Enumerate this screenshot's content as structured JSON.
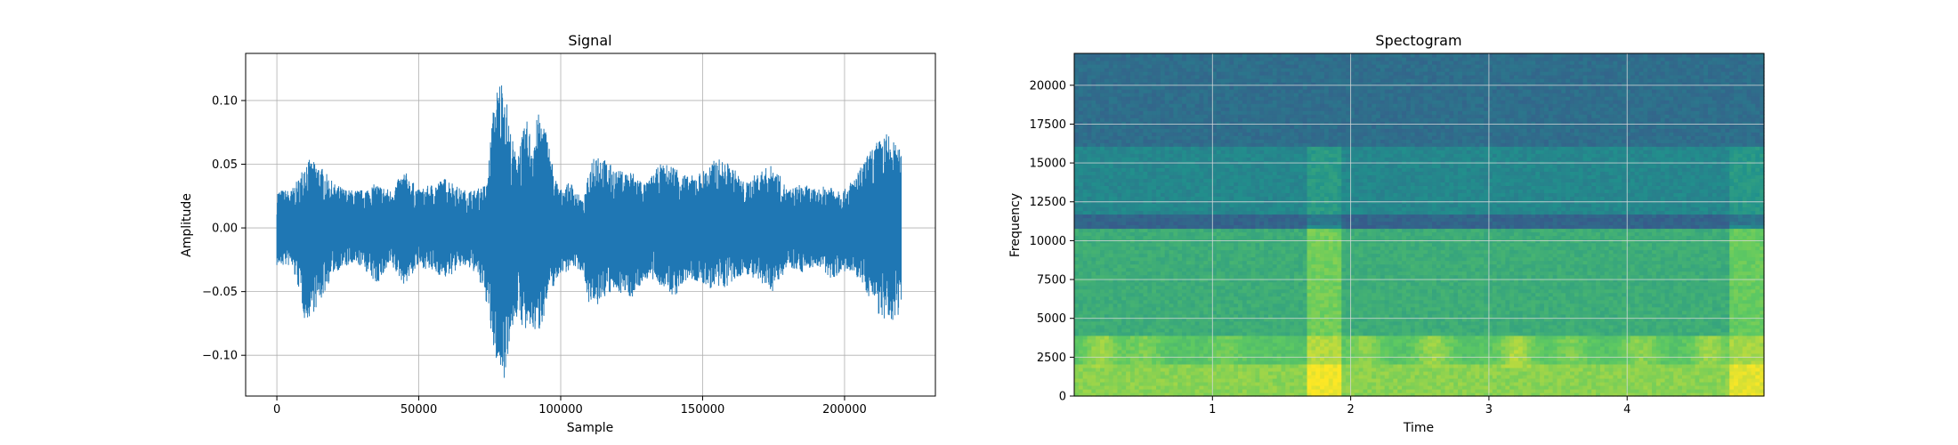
{
  "chart_data": [
    {
      "type": "line",
      "title": "Signal",
      "xlabel": "Sample",
      "ylabel": "Amplitude",
      "xlim": [
        -11000,
        232000
      ],
      "ylim": [
        -0.132,
        0.137
      ],
      "grid": true,
      "xticks": [
        0,
        50000,
        100000,
        150000,
        200000
      ],
      "xtick_labels": [
        "0",
        "50000",
        "100000",
        "150000",
        "200000"
      ],
      "yticks": [
        -0.1,
        -0.05,
        0.0,
        0.05,
        0.1
      ],
      "ytick_labels": [
        "−0.10",
        "−0.05",
        "0.00",
        "0.05",
        "0.10"
      ],
      "line_color": "#1f77b4",
      "series": [
        {
          "x": [
            0,
            5000,
            8000,
            10000,
            15000,
            20000,
            25000,
            30000,
            35000,
            40000,
            45000,
            50000,
            55000,
            60000,
            65000,
            70000,
            74000,
            76000,
            78000,
            80000,
            82000,
            84000,
            86000,
            88000,
            90000,
            92000,
            94000,
            96000,
            98000,
            100000,
            102000,
            104000,
            108000,
            110000,
            112000,
            115000,
            120000,
            125000,
            130000,
            135000,
            140000,
            145000,
            150000,
            155000,
            160000,
            165000,
            170000,
            175000,
            180000,
            185000,
            190000,
            195000,
            200000,
            205000,
            210000,
            215000,
            220000
          ],
          "upper": [
            0.03,
            0.03,
            0.04,
            0.055,
            0.05,
            0.035,
            0.03,
            0.03,
            0.035,
            0.03,
            0.045,
            0.03,
            0.035,
            0.04,
            0.03,
            0.03,
            0.035,
            0.09,
            0.115,
            0.12,
            0.08,
            0.06,
            0.07,
            0.085,
            0.07,
            0.09,
            0.085,
            0.065,
            0.04,
            0.03,
            0.035,
            0.035,
            0.02,
            0.045,
            0.065,
            0.055,
            0.045,
            0.045,
            0.035,
            0.05,
            0.05,
            0.04,
            0.045,
            0.055,
            0.05,
            0.035,
            0.045,
            0.05,
            0.03,
            0.035,
            0.03,
            0.035,
            0.03,
            0.045,
            0.065,
            0.075,
            0.06
          ],
          "lower": [
            -0.03,
            -0.03,
            -0.05,
            -0.075,
            -0.06,
            -0.035,
            -0.03,
            -0.03,
            -0.045,
            -0.03,
            -0.045,
            -0.03,
            -0.035,
            -0.04,
            -0.03,
            -0.035,
            -0.06,
            -0.095,
            -0.11,
            -0.12,
            -0.09,
            -0.07,
            -0.075,
            -0.085,
            -0.08,
            -0.085,
            -0.07,
            -0.05,
            -0.045,
            -0.035,
            -0.035,
            -0.03,
            -0.035,
            -0.06,
            -0.065,
            -0.055,
            -0.05,
            -0.055,
            -0.04,
            -0.045,
            -0.055,
            -0.04,
            -0.045,
            -0.05,
            -0.045,
            -0.035,
            -0.045,
            -0.05,
            -0.03,
            -0.035,
            -0.03,
            -0.04,
            -0.035,
            -0.04,
            -0.06,
            -0.08,
            -0.065
          ]
        }
      ]
    },
    {
      "type": "heatmap",
      "title": "Spectogram",
      "xlabel": "Time",
      "ylabel": "Frequency",
      "xlim": [
        0,
        4.99
      ],
      "ylim": [
        0,
        22050
      ],
      "grid": true,
      "xticks": [
        1,
        2,
        3,
        4
      ],
      "xtick_labels": [
        "1",
        "2",
        "3",
        "4"
      ],
      "yticks": [
        0,
        2500,
        5000,
        7500,
        10000,
        12500,
        15000,
        17500,
        20000
      ],
      "ytick_labels": [
        "0",
        "2500",
        "5000",
        "7500",
        "10000",
        "12500",
        "15000",
        "17500",
        "20000"
      ],
      "colormap": "viridis",
      "freq_bands": [
        {
          "from": 0,
          "to": 2000,
          "level": 0.82
        },
        {
          "from": 2000,
          "to": 4000,
          "level": 0.72
        },
        {
          "from": 4000,
          "to": 10800,
          "level": 0.62
        },
        {
          "from": 10800,
          "to": 11600,
          "level": 0.32
        },
        {
          "from": 11600,
          "to": 16000,
          "level": 0.46
        },
        {
          "from": 16000,
          "to": 22050,
          "level": 0.36
        }
      ],
      "events": [
        {
          "t_from": 1.68,
          "t_to": 1.92,
          "f_to": 16000,
          "boost": 0.16
        },
        {
          "t_from": 4.75,
          "t_to": 4.99,
          "f_to": 16000,
          "boost": 0.14
        }
      ],
      "low_band_bursts": [
        {
          "t": 0.2,
          "level": 0.85
        },
        {
          "t": 0.5,
          "level": 0.8
        },
        {
          "t": 1.1,
          "level": 0.78
        },
        {
          "t": 2.1,
          "level": 0.82
        },
        {
          "t": 2.6,
          "level": 0.85
        },
        {
          "t": 3.2,
          "level": 0.88
        },
        {
          "t": 3.6,
          "level": 0.8
        },
        {
          "t": 4.1,
          "level": 0.82
        },
        {
          "t": 4.6,
          "level": 0.85
        }
      ]
    }
  ]
}
